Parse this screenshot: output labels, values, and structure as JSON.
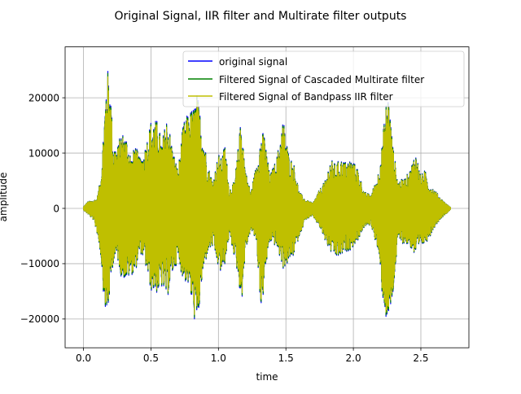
{
  "chart_data": {
    "type": "line",
    "title": "Original Signal, IIR filter and Multirate filter outputs",
    "xlabel": "time",
    "ylabel": "amplitude",
    "xlim": [
      -0.136,
      2.856
    ],
    "ylim": [
      -25200,
      29200
    ],
    "xticks": [
      0.0,
      0.5,
      1.0,
      1.5,
      2.0,
      2.5
    ],
    "xtick_labels": [
      "0.0",
      "0.5",
      "1.0",
      "1.5",
      "2.0",
      "2.5"
    ],
    "yticks": [
      -20000,
      -10000,
      0,
      10000,
      20000
    ],
    "ytick_labels": [
      "−20000",
      "−10000",
      "0",
      "10000",
      "20000"
    ],
    "grid": true,
    "legend_position": "top-right",
    "duration": 2.72,
    "series": [
      {
        "name": "original signal",
        "color": "#0000ff",
        "envelope": [
          [
            0.0,
            300,
            -300
          ],
          [
            0.03,
            1200,
            -1000
          ],
          [
            0.07,
            1500,
            -2000
          ],
          [
            0.1,
            1800,
            -4500
          ],
          [
            0.13,
            6000,
            -9000
          ],
          [
            0.15,
            15000,
            -16000
          ],
          [
            0.175,
            26000,
            -21000
          ],
          [
            0.2,
            22000,
            -14000
          ],
          [
            0.22,
            12000,
            -10000
          ],
          [
            0.25,
            11000,
            -9000
          ],
          [
            0.28,
            14000,
            -12500
          ],
          [
            0.32,
            13000,
            -13000
          ],
          [
            0.36,
            9000,
            -12000
          ],
          [
            0.38,
            12000,
            -12000
          ],
          [
            0.42,
            9000,
            -8000
          ],
          [
            0.45,
            10500,
            -9500
          ],
          [
            0.5,
            16000,
            -15000
          ],
          [
            0.55,
            16000,
            -15500
          ],
          [
            0.58,
            12000,
            -14500
          ],
          [
            0.62,
            17000,
            -16500
          ],
          [
            0.66,
            11000,
            -12000
          ],
          [
            0.7,
            7000,
            -9500
          ],
          [
            0.74,
            15500,
            -13000
          ],
          [
            0.78,
            17500,
            -14000
          ],
          [
            0.82,
            18500,
            -20000
          ],
          [
            0.84,
            21000,
            -22500
          ],
          [
            0.86,
            18000,
            -18000
          ],
          [
            0.88,
            15000,
            -13000
          ],
          [
            0.92,
            8000,
            -8000
          ],
          [
            0.96,
            5000,
            -7000
          ],
          [
            1.0,
            10000,
            -11000
          ],
          [
            1.02,
            9000,
            -12000
          ],
          [
            1.05,
            12000,
            -10000
          ],
          [
            1.08,
            3500,
            -5000
          ],
          [
            1.12,
            5000,
            -9000
          ],
          [
            1.15,
            12000,
            -13000
          ],
          [
            1.17,
            17000,
            -18000
          ],
          [
            1.2,
            7000,
            -8000
          ],
          [
            1.24,
            3000,
            -4000
          ],
          [
            1.28,
            8000,
            -6000
          ],
          [
            1.32,
            14000,
            -20000
          ],
          [
            1.34,
            13500,
            -13000
          ],
          [
            1.38,
            6000,
            -6000
          ],
          [
            1.43,
            9000,
            -7000
          ],
          [
            1.48,
            16500,
            -11000
          ],
          [
            1.52,
            10000,
            -10000
          ],
          [
            1.56,
            8000,
            -8500
          ],
          [
            1.6,
            3000,
            -5000
          ],
          [
            1.65,
            1500,
            -2000
          ],
          [
            1.7,
            1000,
            -1500
          ],
          [
            1.75,
            3500,
            -3500
          ],
          [
            1.79,
            5000,
            -6000
          ],
          [
            1.83,
            9000,
            -8000
          ],
          [
            1.87,
            8000,
            -9000
          ],
          [
            1.9,
            9000,
            -9000
          ],
          [
            1.94,
            8500,
            -8000
          ],
          [
            1.98,
            9000,
            -7500
          ],
          [
            2.03,
            7500,
            -6000
          ],
          [
            2.08,
            3000,
            -3500
          ],
          [
            2.13,
            2500,
            -3000
          ],
          [
            2.18,
            6000,
            -7500
          ],
          [
            2.21,
            11000,
            -15000
          ],
          [
            2.24,
            19000,
            -20000
          ],
          [
            2.26,
            21000,
            -21000
          ],
          [
            2.29,
            12000,
            -17000
          ],
          [
            2.33,
            5000,
            -6000
          ],
          [
            2.38,
            5500,
            -6500
          ],
          [
            2.42,
            7000,
            -7000
          ],
          [
            2.46,
            10500,
            -9000
          ],
          [
            2.5,
            6000,
            -7000
          ],
          [
            2.53,
            7000,
            -6500
          ],
          [
            2.56,
            4500,
            -5500
          ],
          [
            2.6,
            3500,
            -3500
          ],
          [
            2.65,
            1800,
            -1800
          ],
          [
            2.7,
            600,
            -700
          ],
          [
            2.72,
            200,
            -200
          ]
        ]
      },
      {
        "name": "Filtered Signal of Cascaded Multirate filter",
        "color": "#008000",
        "scale": 0.985
      },
      {
        "name": "Filtered Signal of Bandpass IIR filter",
        "color": "#bfbf00",
        "scale": 0.96
      }
    ]
  }
}
